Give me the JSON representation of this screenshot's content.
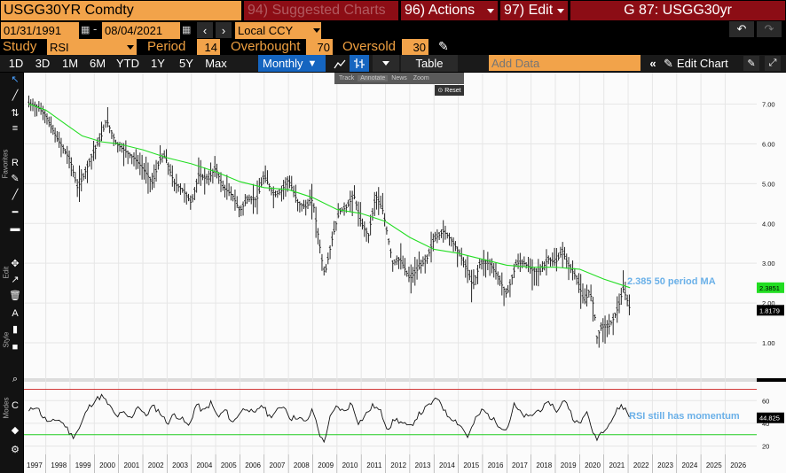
{
  "header": {
    "security": "USGG30YR Comdty",
    "suggested": "94) Suggested Charts",
    "actions": "96) Actions",
    "edit": "97) Edit",
    "ticker": "G 87: USGG30yr"
  },
  "controls": {
    "start_date": "01/31/1991",
    "end_date": "08/04/2021",
    "currency": "Local CCY",
    "study_label": "Study",
    "study_value": "RSI",
    "period_label": "Period",
    "period_value": "14",
    "overbought_label": "Overbought",
    "overbought_value": "70",
    "oversold_label": "Oversold",
    "oversold_value": "30"
  },
  "toolbar": {
    "ranges": [
      "1D",
      "3D",
      "1M",
      "6M",
      "YTD",
      "1Y",
      "5Y",
      "Max"
    ],
    "frequency": "Monthly",
    "table": "Table",
    "add_data_placeholder": "Add Data",
    "edit_chart": "Edit Chart"
  },
  "popup": {
    "items": [
      "Track",
      "Annotate",
      "News",
      "Zoom"
    ],
    "reset": "Reset"
  },
  "side_labels": {
    "favorites": "Favorites",
    "edit": "Edit",
    "style": "Style",
    "modes": "Modes"
  },
  "icons": [
    "cursor-icon",
    "line-icon",
    "trend-icon",
    "fib-icon",
    "text-r-icon",
    "pencil-icon",
    "hline-icon",
    "channel-icon",
    "move-icon",
    "eraser-icon",
    "undo-icon",
    "redo-icon",
    "settings-icon",
    "gear-icon"
  ],
  "colors": {
    "price": "#ffffff",
    "ma": "#22dd22",
    "rsi": "#ffffff",
    "overbought_line": "#cc2222",
    "oversold_line": "#22cc22",
    "annotation": "#6ab0e8",
    "accent": "#f2a34a",
    "red": "#8c0d15"
  },
  "chart_data": [
    {
      "type": "line",
      "scale": "linear",
      "ylim": [
        0.2,
        7.7
      ],
      "yticks": [
        "7.00",
        "6.00",
        "5.00",
        "4.00",
        "3.00",
        "2.00",
        "1.00"
      ],
      "grid": true,
      "last_price": "1.8179",
      "ma_value": "2.3851",
      "annotation": "2.385 50 period MA",
      "series": [
        {
          "values": [
            [
              1996.8,
              7.0
            ],
            [
              1997.2,
              6.9
            ],
            [
              1997.5,
              6.7
            ],
            [
              1997.9,
              6.2
            ],
            [
              1998.2,
              5.9
            ],
            [
              1998.5,
              5.6
            ],
            [
              1998.8,
              4.9
            ],
            [
              1999.0,
              5.1
            ],
            [
              1999.4,
              5.7
            ],
            [
              1999.8,
              6.2
            ],
            [
              2000.0,
              6.6
            ],
            [
              2000.4,
              6.0
            ],
            [
              2000.8,
              5.8
            ],
            [
              2001.2,
              5.6
            ],
            [
              2001.6,
              5.3
            ],
            [
              2001.9,
              5.0
            ],
            [
              2002.2,
              5.6
            ],
            [
              2002.4,
              5.7
            ],
            [
              2002.8,
              5.0
            ],
            [
              2003.2,
              4.8
            ],
            [
              2003.5,
              4.5
            ],
            [
              2003.8,
              5.2
            ],
            [
              2004.2,
              5.1
            ],
            [
              2004.5,
              5.4
            ],
            [
              2004.8,
              4.9
            ],
            [
              2005.2,
              4.7
            ],
            [
              2005.5,
              4.3
            ],
            [
              2005.8,
              4.6
            ],
            [
              2006.2,
              4.6
            ],
            [
              2006.5,
              5.2
            ],
            [
              2006.9,
              4.7
            ],
            [
              2007.2,
              4.8
            ],
            [
              2007.5,
              5.1
            ],
            [
              2007.9,
              4.5
            ],
            [
              2008.2,
              4.4
            ],
            [
              2008.5,
              4.6
            ],
            [
              2008.9,
              3.0
            ],
            [
              2009.0,
              2.7
            ],
            [
              2009.3,
              3.6
            ],
            [
              2009.6,
              4.3
            ],
            [
              2009.9,
              4.4
            ],
            [
              2010.2,
              4.7
            ],
            [
              2010.5,
              4.0
            ],
            [
              2010.8,
              3.7
            ],
            [
              2011.1,
              4.7
            ],
            [
              2011.4,
              4.3
            ],
            [
              2011.8,
              3.0
            ],
            [
              2012.1,
              3.1
            ],
            [
              2012.5,
              2.6
            ],
            [
              2012.9,
              2.9
            ],
            [
              2013.2,
              3.1
            ],
            [
              2013.5,
              3.6
            ],
            [
              2013.9,
              3.8
            ],
            [
              2014.2,
              3.6
            ],
            [
              2014.5,
              3.3
            ],
            [
              2014.9,
              2.8
            ],
            [
              2015.1,
              2.4
            ],
            [
              2015.4,
              3.0
            ],
            [
              2015.8,
              3.0
            ],
            [
              2016.1,
              2.7
            ],
            [
              2016.5,
              2.2
            ],
            [
              2016.9,
              3.0
            ],
            [
              2017.2,
              3.0
            ],
            [
              2017.6,
              2.8
            ],
            [
              2017.9,
              2.8
            ],
            [
              2018.2,
              3.1
            ],
            [
              2018.5,
              3.0
            ],
            [
              2018.8,
              3.3
            ],
            [
              2019.0,
              3.0
            ],
            [
              2019.4,
              2.6
            ],
            [
              2019.7,
              2.0
            ],
            [
              2019.9,
              2.3
            ],
            [
              2020.1,
              1.9
            ],
            [
              2020.2,
              1.1
            ],
            [
              2020.4,
              1.4
            ],
            [
              2020.7,
              1.4
            ],
            [
              2020.9,
              1.6
            ],
            [
              2021.1,
              1.9
            ],
            [
              2021.3,
              2.35
            ],
            [
              2021.5,
              2.0
            ],
            [
              2021.58,
              1.82
            ]
          ]
        },
        {
          "values": [
            [
              1996.8,
              7.0
            ],
            [
              1997.5,
              6.85
            ],
            [
              1998.3,
              6.5
            ],
            [
              1999.0,
              6.2
            ],
            [
              1999.8,
              6.05
            ],
            [
              2000.5,
              6.0
            ],
            [
              2001.5,
              5.85
            ],
            [
              2002.5,
              5.65
            ],
            [
              2003.5,
              5.5
            ],
            [
              2004.5,
              5.3
            ],
            [
              2005.5,
              5.05
            ],
            [
              2006.5,
              4.9
            ],
            [
              2007.5,
              4.85
            ],
            [
              2008.5,
              4.65
            ],
            [
              2009.5,
              4.35
            ],
            [
              2010.5,
              4.25
            ],
            [
              2011.5,
              4.05
            ],
            [
              2012.5,
              3.65
            ],
            [
              2013.5,
              3.35
            ],
            [
              2014.5,
              3.25
            ],
            [
              2015.5,
              3.1
            ],
            [
              2016.5,
              2.95
            ],
            [
              2017.5,
              2.9
            ],
            [
              2018.5,
              2.9
            ],
            [
              2019.5,
              2.85
            ],
            [
              2020.5,
              2.6
            ],
            [
              2021.58,
              2.385
            ]
          ]
        }
      ]
    },
    {
      "type": "line",
      "ylim": [
        15,
        75
      ],
      "yticks": [
        "60",
        "40",
        "20"
      ],
      "overbought": 70,
      "oversold": 30,
      "last_value": "44.825",
      "annotation": "RSI still has momentum",
      "categories": [
        "1997",
        "1998",
        "1999",
        "2000",
        "2001",
        "2002",
        "2003",
        "2004",
        "2005",
        "2006",
        "2007",
        "2008",
        "2009",
        "2010",
        "2011",
        "2012",
        "2013",
        "2014",
        "2015",
        "2016",
        "2017",
        "2018",
        "2019",
        "2020",
        "2021",
        "2022",
        "2023",
        "2024",
        "2025",
        "2026"
      ],
      "series": [
        {
          "values": [
            [
              1996.8,
              50
            ],
            [
              1997.1,
              56
            ],
            [
              1997.4,
              45
            ],
            [
              1997.7,
              40
            ],
            [
              1998.0,
              44
            ],
            [
              1998.3,
              38
            ],
            [
              1998.6,
              28
            ],
            [
              1998.9,
              36
            ],
            [
              1999.2,
              52
            ],
            [
              1999.5,
              60
            ],
            [
              1999.8,
              64
            ],
            [
              2000.1,
              56
            ],
            [
              2000.4,
              46
            ],
            [
              2000.7,
              49
            ],
            [
              2001.0,
              44
            ],
            [
              2001.3,
              56
            ],
            [
              2001.6,
              46
            ],
            [
              2001.9,
              55
            ],
            [
              2002.2,
              50
            ],
            [
              2002.5,
              40
            ],
            [
              2002.8,
              48
            ],
            [
              2003.1,
              44
            ],
            [
              2003.4,
              37
            ],
            [
              2003.7,
              57
            ],
            [
              2004.0,
              50
            ],
            [
              2004.3,
              58
            ],
            [
              2004.6,
              45
            ],
            [
              2004.9,
              52
            ],
            [
              2005.2,
              40
            ],
            [
              2005.5,
              50
            ],
            [
              2005.8,
              54
            ],
            [
              2006.1,
              47
            ],
            [
              2006.4,
              57
            ],
            [
              2006.7,
              46
            ],
            [
              2007.0,
              50
            ],
            [
              2007.3,
              56
            ],
            [
              2007.6,
              44
            ],
            [
              2007.9,
              46
            ],
            [
              2008.2,
              40
            ],
            [
              2008.5,
              52
            ],
            [
              2008.8,
              30
            ],
            [
              2008.95,
              22
            ],
            [
              2009.2,
              44
            ],
            [
              2009.5,
              55
            ],
            [
              2009.8,
              50
            ],
            [
              2010.1,
              58
            ],
            [
              2010.4,
              40
            ],
            [
              2010.7,
              48
            ],
            [
              2011.0,
              56
            ],
            [
              2011.3,
              50
            ],
            [
              2011.6,
              35
            ],
            [
              2011.9,
              44
            ],
            [
              2012.2,
              40
            ],
            [
              2012.5,
              36
            ],
            [
              2012.8,
              46
            ],
            [
              2013.1,
              52
            ],
            [
              2013.4,
              58
            ],
            [
              2013.7,
              62
            ],
            [
              2014.0,
              48
            ],
            [
              2014.3,
              44
            ],
            [
              2014.6,
              38
            ],
            [
              2014.9,
              28
            ],
            [
              2015.2,
              43
            ],
            [
              2015.5,
              52
            ],
            [
              2015.8,
              46
            ],
            [
              2016.1,
              40
            ],
            [
              2016.5,
              34
            ],
            [
              2016.8,
              56
            ],
            [
              2017.1,
              48
            ],
            [
              2017.4,
              45
            ],
            [
              2017.7,
              50
            ],
            [
              2018.0,
              54
            ],
            [
              2018.3,
              58
            ],
            [
              2018.6,
              50
            ],
            [
              2018.9,
              62
            ],
            [
              2019.2,
              46
            ],
            [
              2019.5,
              38
            ],
            [
              2019.8,
              52
            ],
            [
              2019.95,
              36
            ],
            [
              2020.2,
              27
            ],
            [
              2020.5,
              35
            ],
            [
              2020.8,
              42
            ],
            [
              2021.0,
              50
            ],
            [
              2021.2,
              56
            ],
            [
              2021.4,
              52
            ],
            [
              2021.58,
              44.8
            ]
          ]
        }
      ]
    }
  ]
}
